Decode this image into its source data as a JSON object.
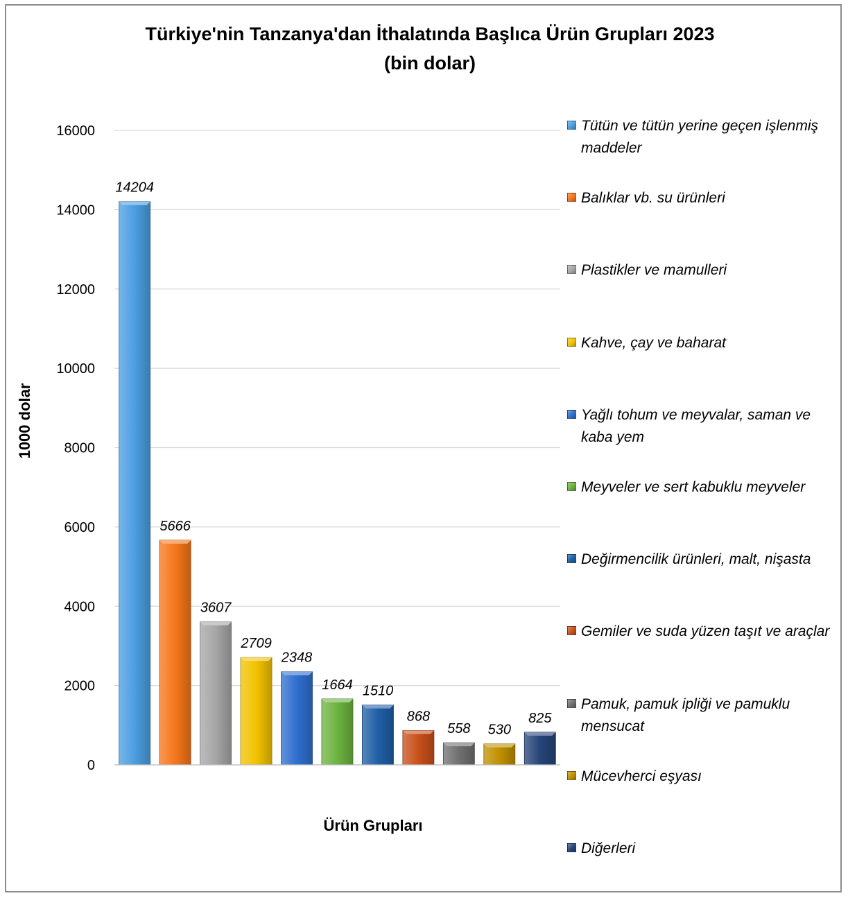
{
  "chart_data": {
    "type": "bar",
    "title_lines": [
      "Türkiye'nin Tanzanya'dan İthalatında Başlıca Ürün Grupları 2023",
      "(bin dolar)"
    ],
    "xlabel": "Ürün Grupları",
    "ylabel": "1000 dolar",
    "ylim": [
      0,
      16000
    ],
    "yticks": [
      0,
      2000,
      4000,
      6000,
      8000,
      10000,
      12000,
      14000,
      16000
    ],
    "grid": true,
    "legend_position": "right",
    "categories": [
      "Tütün ve tütün yerine geçen işlenmiş maddeler",
      "Balıklar vb. su ürünleri",
      "Plastikler ve mamulleri",
      "Kahve, çay ve baharat",
      "Yağlı tohum ve meyvalar, saman ve kaba yem",
      "Meyveler ve sert kabuklu meyveler",
      "Değirmencilik ürünleri, malt, nişasta",
      "Gemiler ve suda yüzen taşıt ve araçlar",
      "Pamuk, pamuk ipliği ve pamuklu mensucat",
      "Mücevherci eşyası",
      "Diğerleri"
    ],
    "values": [
      14204,
      5666,
      3607,
      2709,
      2348,
      1664,
      1510,
      868,
      558,
      530,
      825
    ],
    "colors": [
      "#4a9ee0",
      "#f5761a",
      "#a6a6a6",
      "#f2c200",
      "#2f6fcf",
      "#6cb33f",
      "#1f5fa6",
      "#c8501a",
      "#707070",
      "#bf9000",
      "#264478"
    ]
  }
}
